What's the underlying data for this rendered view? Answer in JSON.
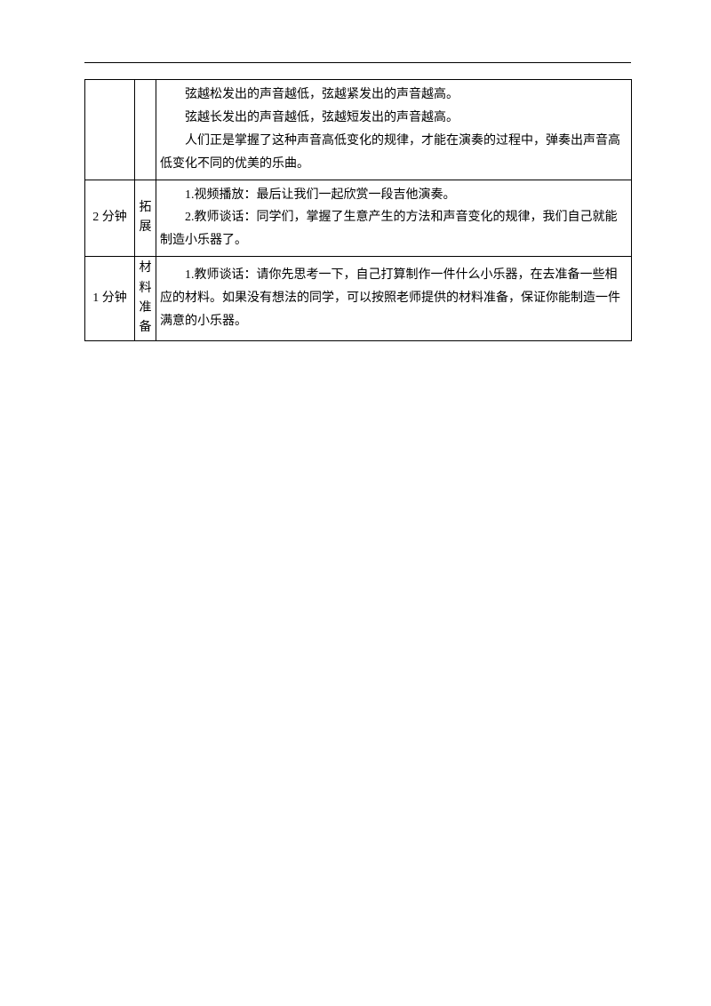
{
  "row1": {
    "content": [
      "弦越松发出的声音越低，弦越紧发出的声音越高。",
      "弦越长发出的声音越低，弦越短发出的声音越高。",
      "人们正是掌握了这种声音高低变化的规律，才能在演奏的过程中，弹奏出声音高低变化不同的优美的乐曲。"
    ]
  },
  "row2": {
    "time": "2 分钟",
    "label": "拓展",
    "content": [
      "1.视频播放：最后让我们一起欣赏一段吉他演奏。",
      "2.教师谈话：同学们，掌握了生意产生的方法和声音变化的规律，我们自己就能制造小乐器了。"
    ]
  },
  "row3": {
    "time": "1 分钟",
    "label": "材料准备",
    "content": [
      "1.教师谈话：请你先思考一下，自己打算制作一件什么小乐器，在去准备一些相应的材料。如果没有想法的同学，可以按照老师提供的材料准备，保证你能制造一件满意的小乐器。"
    ]
  }
}
